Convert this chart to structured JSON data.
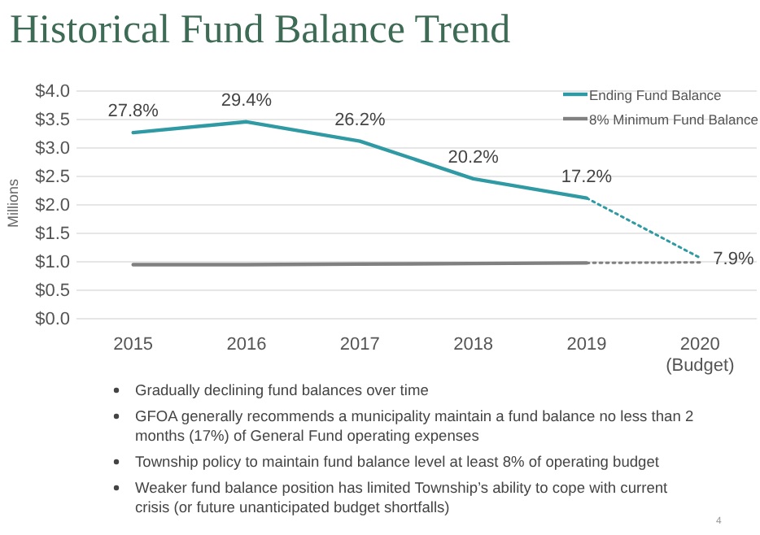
{
  "chart_data": {
    "type": "line",
    "title": "Historical Fund Balance Trend",
    "ylabel": "Millions",
    "categories": [
      "2015",
      "2016",
      "2017",
      "2018",
      "2019",
      "2020 (Budget)"
    ],
    "ylim": [
      0,
      4
    ],
    "yticks": [
      {
        "value": 0,
        "label": "$0.0"
      },
      {
        "value": 0.5,
        "label": "$0.5"
      },
      {
        "value": 1,
        "label": "$1.0"
      },
      {
        "value": 1.5,
        "label": "$1.5"
      },
      {
        "value": 2,
        "label": "$2.0"
      },
      {
        "value": 2.5,
        "label": "$2.5"
      },
      {
        "value": 3,
        "label": "$3.0"
      },
      {
        "value": 3.5,
        "label": "$3.5"
      },
      {
        "value": 4,
        "label": "$4.0"
      }
    ],
    "grid": "y",
    "legend": "top right",
    "marker": "none",
    "series": [
      {
        "name": "Ending Fund Balance",
        "color": "#2f9aa3",
        "line_style": "solid",
        "values": [
          3.27,
          3.46,
          3.12,
          2.46,
          2.12,
          null
        ]
      },
      {
        "name": "8% Minimum Fund Balance",
        "color": "#808080",
        "line_style": "solid",
        "values": [
          0.95,
          0.95,
          0.96,
          0.97,
          0.98,
          null
        ]
      },
      {
        "color": "#2f9aa3",
        "line_style": "dotted",
        "values": [
          null,
          null,
          null,
          null,
          2.12,
          1.07
        ]
      },
      {
        "color": "#808080",
        "line_style": "dotted",
        "values": [
          null,
          null,
          null,
          null,
          0.98,
          0.99
        ]
      }
    ],
    "annotations": [
      {
        "text": "27.8%",
        "x": "2015",
        "y": 3.27
      },
      {
        "text": "29.4%",
        "x": "2016",
        "y": 3.46
      },
      {
        "text": "26.2%",
        "x": "2017",
        "y": 3.12
      },
      {
        "text": "20.2%",
        "x": "2018",
        "y": 2.46
      },
      {
        "text": "17.2%",
        "x": "2019",
        "y": 2.12
      },
      {
        "text": "7.9%",
        "x": "2020 (Budget)",
        "y": 1.07
      },
      "Gradually declining fund balances over time",
      "GFOA generally recommends a municipality maintain a fund balance no less than 2 months (17%) of General Fund operating expenses",
      "Township policy to maintain fund balance level at least 8% of operating budget",
      "Weaker fund balance position has limited Township’s ability to cope with current crisis (or future unanticipated budget shortfalls)",
      "4"
    ]
  }
}
